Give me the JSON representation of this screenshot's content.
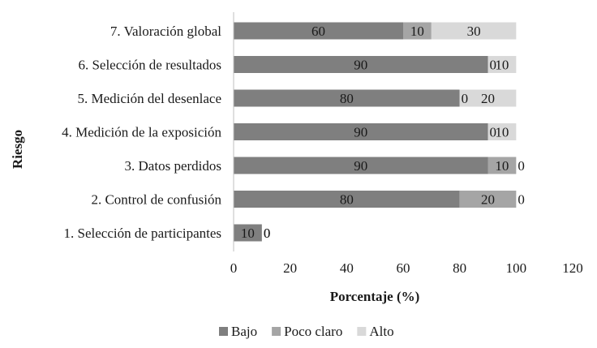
{
  "chart_data": {
    "type": "bar",
    "orientation": "horizontal",
    "stacked": true,
    "title": "",
    "xlabel": "Porcentaje (%)",
    "ylabel": "Riesgo",
    "xlim": [
      0,
      120
    ],
    "xticks": [
      0,
      20,
      40,
      60,
      80,
      100,
      120
    ],
    "grid": false,
    "legend_position": "bottom",
    "categories": [
      "7. Valoración global",
      "6. Selección de resultados",
      "5. Medición del desenlace",
      "4. Medición de la exposición",
      "3. Datos perdidos",
      "2. Control de confusión",
      "1. Selección de participantes"
    ],
    "series": [
      {
        "name": "Bajo",
        "color": "#7f7f7f",
        "values": [
          60,
          90,
          80,
          90,
          90,
          80,
          10
        ]
      },
      {
        "name": "Poco claro",
        "color": "#a5a5a5",
        "values": [
          10,
          0,
          0,
          0,
          10,
          20,
          0
        ]
      },
      {
        "name": "Alto",
        "color": "#d9d9d9",
        "values": [
          30,
          10,
          20,
          10,
          0,
          0,
          0
        ]
      }
    ]
  }
}
